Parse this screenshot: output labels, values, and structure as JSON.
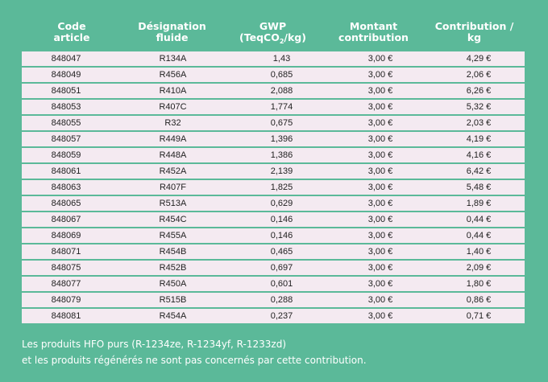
{
  "headers": {
    "code_line1": "Code",
    "code_line2": "article",
    "designation_line1": "Désignation",
    "designation_line2": "fluide",
    "gwp_line1": "GWP",
    "gwp_line2_prefix": "(TeqCO",
    "gwp_line2_sub": "2",
    "gwp_line2_suffix": "/kg)",
    "montant_line1": "Montant",
    "montant_line2": "contribution",
    "contribution_line1": "Contribution /",
    "contribution_line2": "kg"
  },
  "rows": [
    {
      "code": "848047",
      "fluid": "R134A",
      "gwp": "1,43",
      "montant": "3,00 €",
      "contribution": "4,29 €"
    },
    {
      "code": "848049",
      "fluid": "R456A",
      "gwp": "0,685",
      "montant": "3,00 €",
      "contribution": "2,06 €"
    },
    {
      "code": "848051",
      "fluid": "R410A",
      "gwp": "2,088",
      "montant": "3,00 €",
      "contribution": "6,26 €"
    },
    {
      "code": "848053",
      "fluid": "R407C",
      "gwp": "1,774",
      "montant": "3,00 €",
      "contribution": "5,32 €"
    },
    {
      "code": "848055",
      "fluid": "R32",
      "gwp": "0,675",
      "montant": "3,00 €",
      "contribution": "2,03 €"
    },
    {
      "code": "848057",
      "fluid": "R449A",
      "gwp": "1,396",
      "montant": "3,00 €",
      "contribution": "4,19 €"
    },
    {
      "code": "848059",
      "fluid": "R448A",
      "gwp": "1,386",
      "montant": "3,00 €",
      "contribution": "4,16 €"
    },
    {
      "code": "848061",
      "fluid": "R452A",
      "gwp": "2,139",
      "montant": "3,00 €",
      "contribution": "6,42 €"
    },
    {
      "code": "848063",
      "fluid": "R407F",
      "gwp": "1,825",
      "montant": "3,00 €",
      "contribution": "5,48 €"
    },
    {
      "code": "848065",
      "fluid": "R513A",
      "gwp": "0,629",
      "montant": "3,00 €",
      "contribution": "1,89 €"
    },
    {
      "code": "848067",
      "fluid": "R454C",
      "gwp": "0,146",
      "montant": "3,00 €",
      "contribution": "0,44 €"
    },
    {
      "code": "848069",
      "fluid": "R455A",
      "gwp": "0,146",
      "montant": "3,00 €",
      "contribution": "0,44 €"
    },
    {
      "code": "848071",
      "fluid": "R454B",
      "gwp": "0,465",
      "montant": "3,00 €",
      "contribution": "1,40 €"
    },
    {
      "code": "848075",
      "fluid": "R452B",
      "gwp": "0,697",
      "montant": "3,00 €",
      "contribution": "2,09 €"
    },
    {
      "code": "848077",
      "fluid": "R450A",
      "gwp": "0,601",
      "montant": "3,00 €",
      "contribution": "1,80 €"
    },
    {
      "code": "848079",
      "fluid": "R515B",
      "gwp": "0,288",
      "montant": "3,00 €",
      "contribution": "0,86 €"
    },
    {
      "code": "848081",
      "fluid": "R454A",
      "gwp": "0,237",
      "montant": "3,00 €",
      "contribution": "0,71 €"
    }
  ],
  "footer": {
    "line1": "Les produits HFO purs (R-1234ze, R-1234yf, R-1233zd)",
    "line2": "et les produits régénérés ne sont pas concernés par cette contribution."
  },
  "colors": {
    "background": "#5bb999",
    "row_background": "#f4eaf1",
    "header_text": "#ffffff"
  }
}
